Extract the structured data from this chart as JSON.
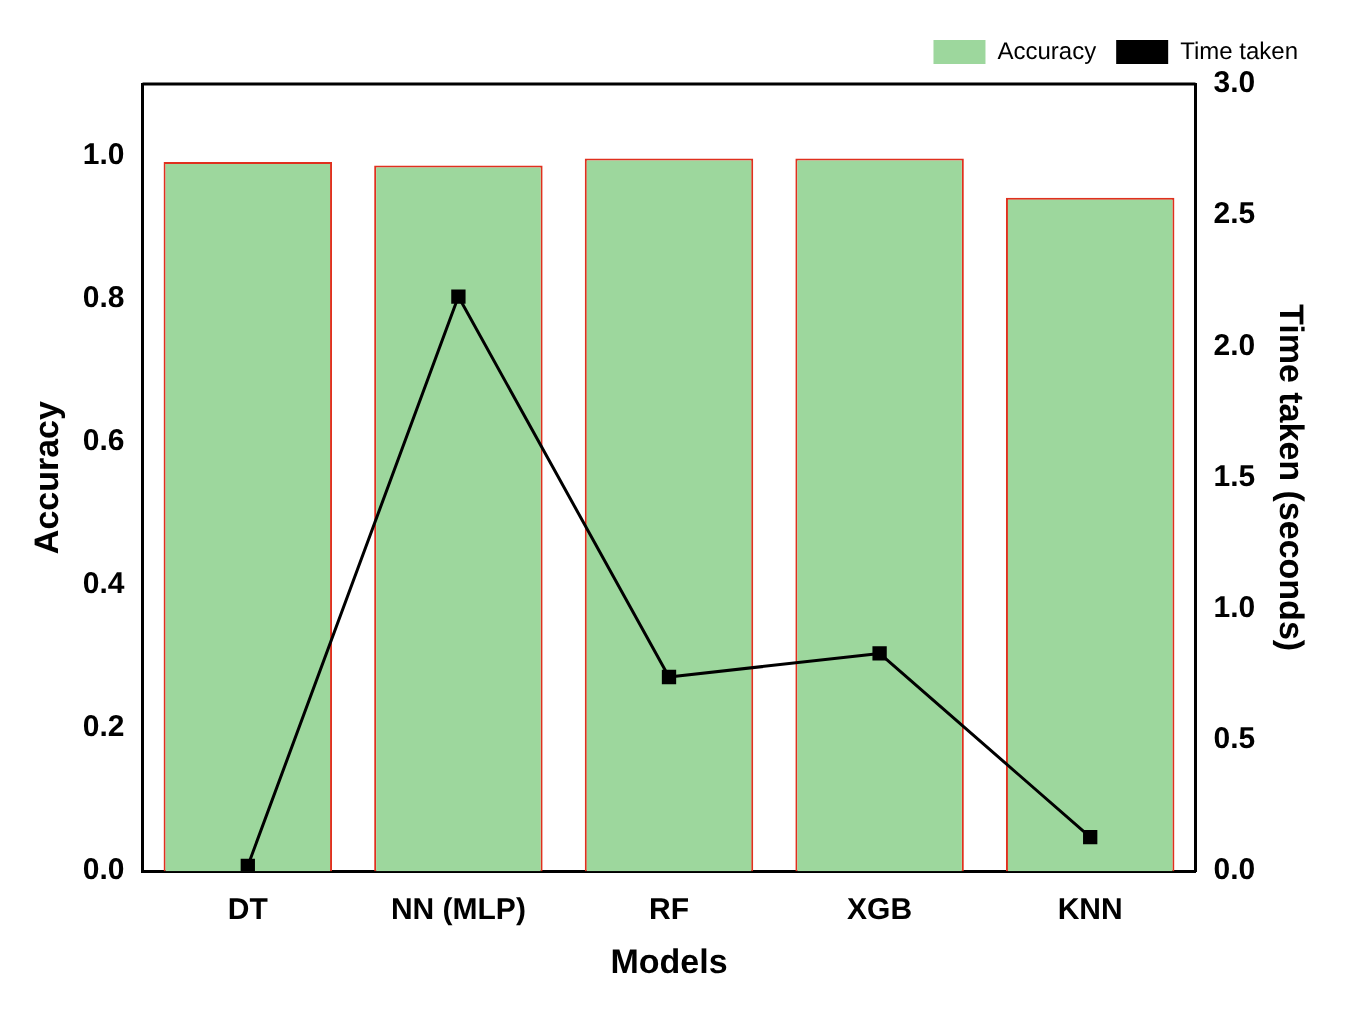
{
  "chart_data": {
    "type": "bar",
    "xlabel": "Models",
    "ylabel": "Accuracy",
    "y2label": "Time taken (seconds)",
    "categories": [
      "DT",
      "NN (MLP)",
      "RF",
      "XGB",
      "KNN"
    ],
    "series": [
      {
        "name": "Accuracy",
        "color": "#9dd79d",
        "values": [
          0.991,
          0.986,
          0.996,
          0.996,
          0.941
        ]
      },
      {
        "name": "Time taken",
        "type": "line",
        "axis": "y2",
        "color": "#000000",
        "values": [
          0.02,
          2.19,
          0.74,
          0.83,
          0.13
        ]
      }
    ],
    "ylim": [
      0,
      1.1
    ],
    "yticks": [
      {
        "value": 0,
        "label": "0.0"
      },
      {
        "value": 0.2,
        "label": "0.2"
      },
      {
        "value": 0.4,
        "label": "0.4"
      },
      {
        "value": 0.6,
        "label": "0.6"
      },
      {
        "value": 0.8,
        "label": "0.8"
      },
      {
        "value": 1,
        "label": "1.0"
      }
    ],
    "y2lim": [
      0,
      3
    ],
    "y2ticks": [
      {
        "value": 0,
        "label": "0.0"
      },
      {
        "value": 0.5,
        "label": "0.5"
      },
      {
        "value": 1,
        "label": "1.0"
      },
      {
        "value": 1.5,
        "label": "1.5"
      },
      {
        "value": 2,
        "label": "2.0"
      },
      {
        "value": 2.5,
        "label": "2.5"
      },
      {
        "value": 3,
        "label": "3.0"
      }
    ],
    "legend": "top right",
    "marker": "square",
    "line_style": "solid",
    "grid": false
  }
}
